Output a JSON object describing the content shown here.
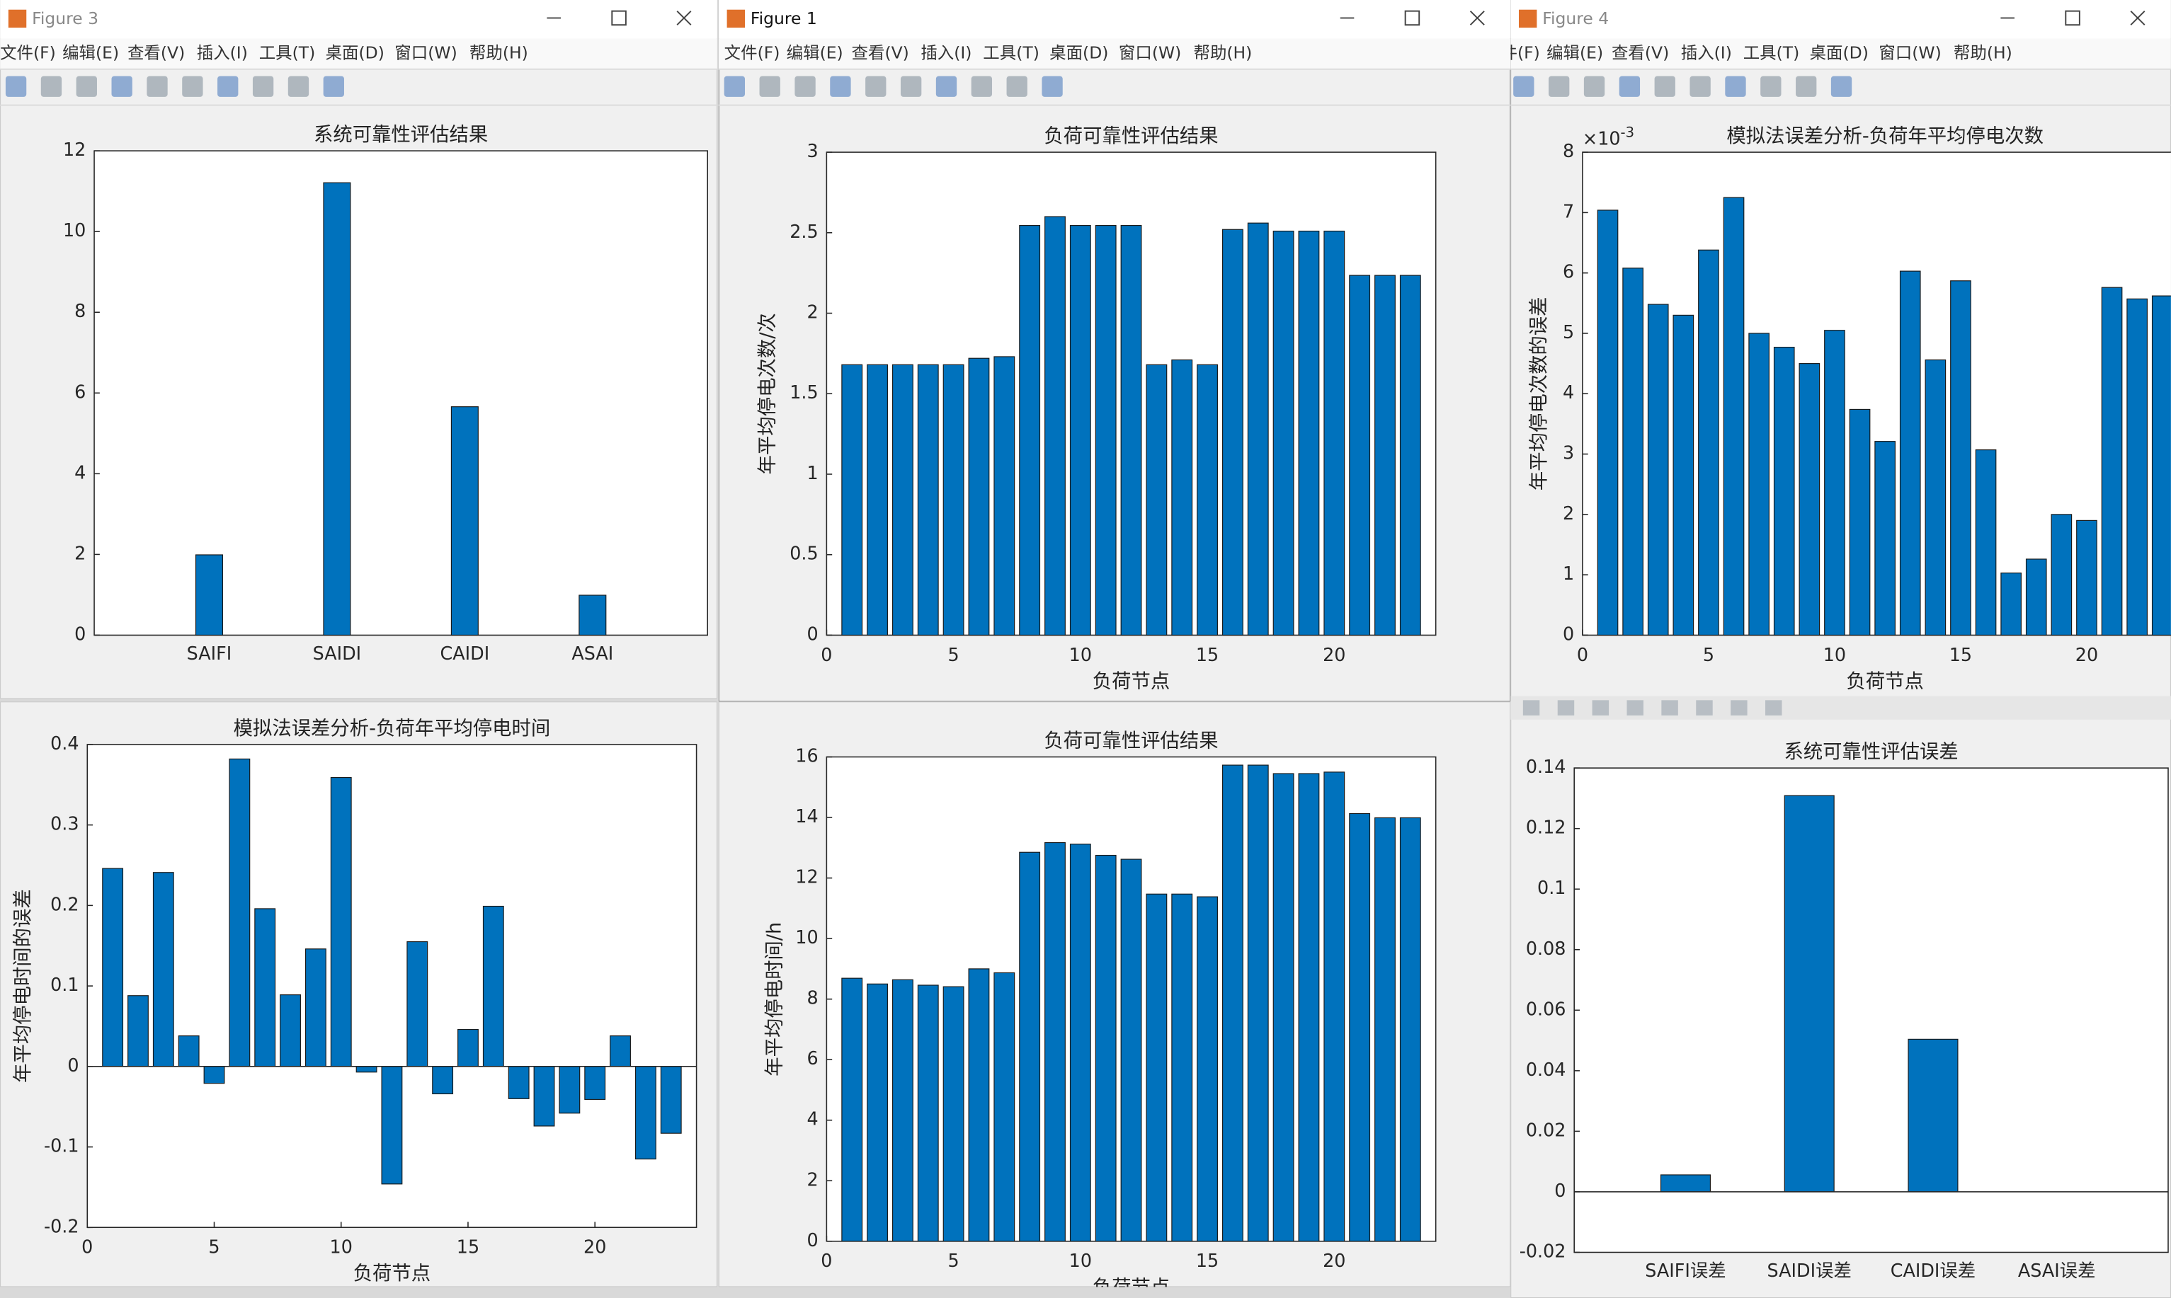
{
  "menu": [
    "文件(F)",
    "编辑(E)",
    "查看(V)",
    "插入(I)",
    "工具(T)",
    "桌面(D)",
    "窗口(W)",
    "帮助(H)"
  ],
  "windows": [
    {
      "title": "Figure 3"
    },
    {
      "title": "Figure 1"
    },
    {
      "title": "Figure 4"
    }
  ],
  "chart_data": [
    {
      "type": "bar",
      "title": "系统可靠性评估结果",
      "categories": [
        "SAIFI",
        "SAIDI",
        "CAIDI",
        "ASAI"
      ],
      "values": [
        1.99,
        11.21,
        5.66,
        0.99
      ],
      "color": "#0072bd",
      "ylim": [
        0,
        12
      ],
      "yticks": [
        0,
        2,
        4,
        6,
        8,
        10,
        12
      ]
    },
    {
      "type": "bar",
      "title": "负荷可靠性评估结果",
      "xlabel": "负荷节点",
      "ylabel": "年平均停电次数/次",
      "x": [
        1,
        2,
        3,
        4,
        5,
        6,
        7,
        8,
        9,
        10,
        11,
        12,
        13,
        14,
        15,
        16,
        17,
        18,
        19,
        20,
        21,
        22,
        23
      ],
      "values": [
        1.68,
        1.68,
        1.68,
        1.68,
        1.68,
        1.72,
        1.73,
        2.545,
        2.6,
        2.545,
        2.545,
        2.545,
        1.68,
        1.71,
        1.68,
        2.52,
        2.56,
        2.51,
        2.51,
        2.51,
        2.235,
        2.235,
        2.235
      ],
      "color": "#0072bd",
      "xlim": [
        0,
        24
      ],
      "xticks": [
        0,
        5,
        10,
        15,
        20
      ],
      "ylim": [
        0,
        3
      ],
      "yticks": [
        0,
        0.5,
        1,
        1.5,
        2,
        2.5,
        3
      ]
    },
    {
      "type": "bar",
      "title": "模拟法误差分析-负荷年平均停电次数",
      "xlabel": "负荷节点",
      "ylabel": "年平均停电次数的误差",
      "x": [
        1,
        2,
        3,
        4,
        5,
        6,
        7,
        8,
        9,
        10,
        11,
        12,
        13,
        14,
        15,
        16,
        17,
        18,
        19,
        20,
        21,
        22,
        23
      ],
      "values": [
        7.04,
        6.08,
        5.48,
        5.3,
        6.38,
        7.25,
        5.0,
        4.77,
        4.5,
        5.05,
        3.74,
        3.21,
        6.03,
        4.56,
        5.87,
        3.07,
        1.03,
        1.26,
        2.0,
        1.9,
        5.76,
        5.57,
        5.62
      ],
      "color": "#0072bd",
      "xlim": [
        0,
        24
      ],
      "xticks": [
        0,
        5,
        10,
        15,
        20
      ],
      "ylim": [
        0,
        8
      ],
      "yticks": [
        0,
        1,
        2,
        3,
        4,
        5,
        6,
        7,
        8
      ],
      "y_exponent_base": "×10",
      "y_exponent": "-3"
    },
    {
      "type": "bar",
      "title": "模拟法误差分析-负荷年平均停电时间",
      "xlabel": "负荷节点",
      "ylabel": "年平均停电时间的误差",
      "x": [
        1,
        2,
        3,
        4,
        5,
        6,
        7,
        8,
        9,
        10,
        11,
        12,
        13,
        14,
        15,
        16,
        17,
        18,
        19,
        20,
        21,
        22,
        23
      ],
      "values": [
        0.246,
        0.088,
        0.241,
        0.038,
        -0.021,
        0.382,
        0.196,
        0.089,
        0.146,
        0.359,
        -0.007,
        -0.146,
        0.155,
        -0.034,
        0.046,
        0.199,
        -0.04,
        -0.074,
        -0.058,
        -0.041,
        0.038,
        -0.115,
        -0.083
      ],
      "color": "#0072bd",
      "xlim": [
        0,
        24
      ],
      "xticks": [
        0,
        5,
        10,
        15,
        20
      ],
      "ylim": [
        -0.2,
        0.4
      ],
      "yticks": [
        -0.2,
        -0.1,
        0,
        0.1,
        0.2,
        0.3,
        0.4
      ]
    },
    {
      "type": "bar",
      "title": "负荷可靠性评估结果",
      "xlabel": "负荷节点",
      "ylabel": "年平均停电时间/h",
      "x": [
        1,
        2,
        3,
        4,
        5,
        6,
        7,
        8,
        9,
        10,
        11,
        12,
        13,
        14,
        15,
        16,
        17,
        18,
        19,
        20,
        21,
        22,
        23
      ],
      "values": [
        8.69,
        8.5,
        8.64,
        8.46,
        8.41,
        9.0,
        8.87,
        12.85,
        13.17,
        13.12,
        12.75,
        12.62,
        11.47,
        11.47,
        11.38,
        15.73,
        15.73,
        15.45,
        15.45,
        15.5,
        14.13,
        13.99,
        13.99
      ],
      "color": "#0072bd",
      "xlim": [
        0,
        24
      ],
      "xticks": [
        0,
        5,
        10,
        15,
        20
      ],
      "ylim": [
        0,
        16
      ],
      "yticks": [
        0,
        2,
        4,
        6,
        8,
        10,
        12,
        14,
        16
      ]
    },
    {
      "type": "bar",
      "title": "系统可靠性评估误差",
      "categories": [
        "SAIFI误差",
        "SAIDI误差",
        "CAIDI误差",
        "ASAI误差"
      ],
      "values": [
        0.0056,
        0.1309,
        0.0504,
        0
      ],
      "color": "#0072bd",
      "ylim": [
        -0.02,
        0.14
      ],
      "yticks": [
        -0.02,
        0,
        0.02,
        0.04,
        0.06,
        0.08,
        0.1,
        0.12,
        0.14
      ]
    }
  ]
}
